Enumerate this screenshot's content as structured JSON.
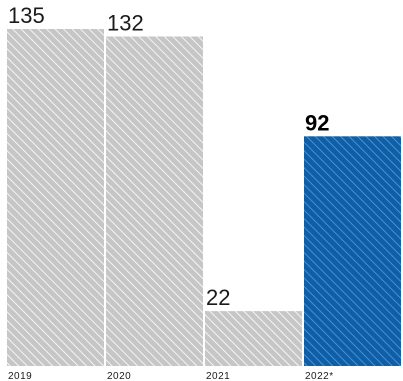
{
  "chart_data": {
    "type": "bar",
    "categories": [
      "2019",
      "2020",
      "2021",
      "2022*"
    ],
    "values": [
      135,
      132,
      22,
      92
    ],
    "data_labels": [
      "135",
      "132",
      "22",
      "92"
    ],
    "highlighted_category": "2022*",
    "title": "",
    "xlabel": "",
    "ylabel": "",
    "ylim": [
      0,
      140
    ],
    "grid": false,
    "legend": "none",
    "colors": {
      "default_bar": "#c6c6c6",
      "default_hatch": "#ffffff",
      "highlight_bar": "#0e5fa8",
      "highlight_hatch": "#5b9bd5",
      "label_default": "#1a1a1a",
      "label_highlight": "#000000",
      "tick_label": "#1a1a1a"
    }
  }
}
